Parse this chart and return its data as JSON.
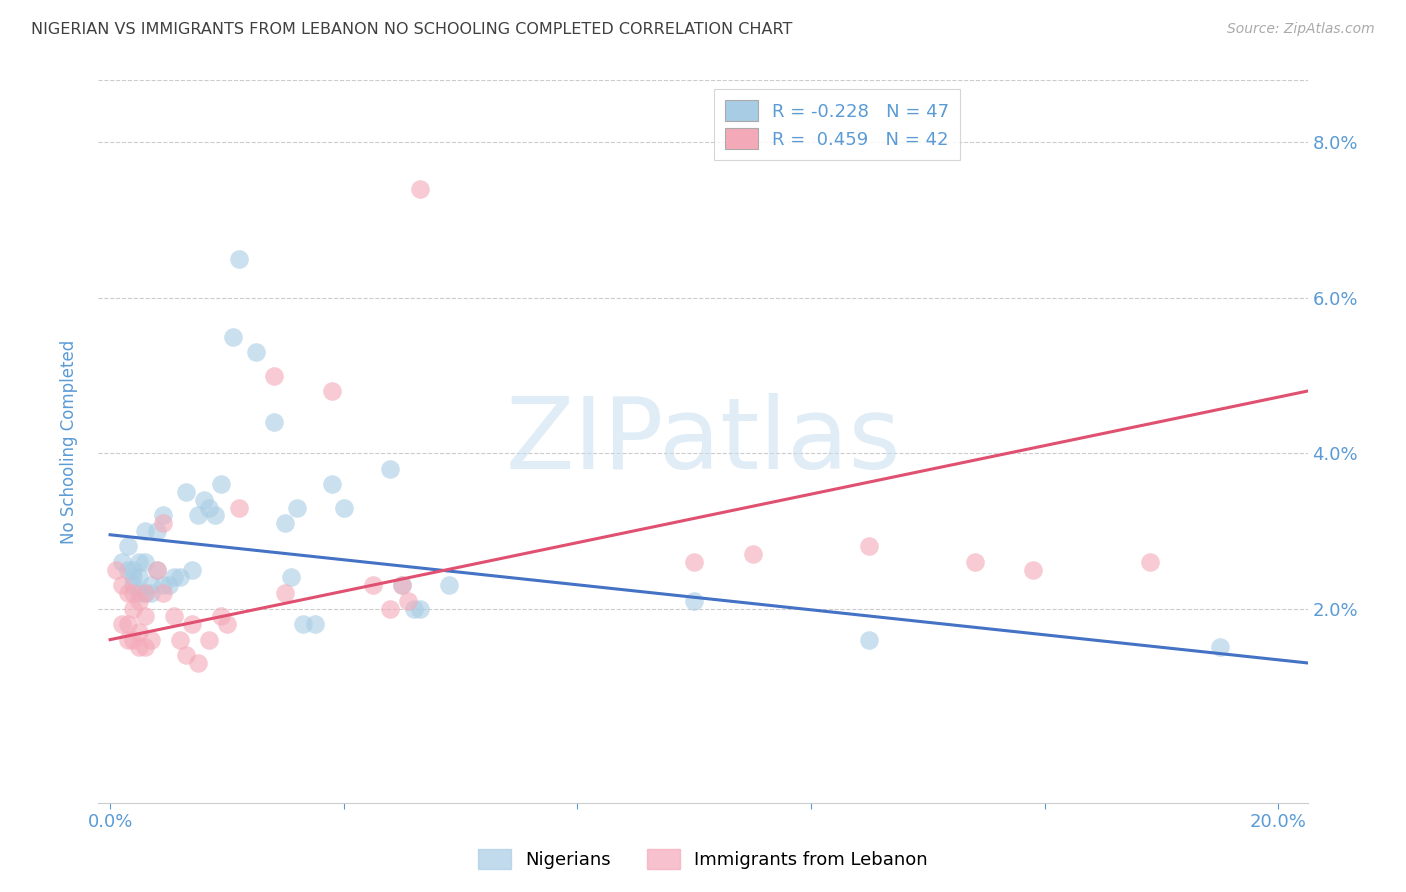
{
  "title": "NIGERIAN VS IMMIGRANTS FROM LEBANON NO SCHOOLING COMPLETED CORRELATION CHART",
  "source": "Source: ZipAtlas.com",
  "ylabel": "No Schooling Completed",
  "watermark": "ZIPatlas",
  "xlim": [
    -0.002,
    0.205
  ],
  "ylim": [
    -0.005,
    0.088
  ],
  "ytick_positions": [
    0.0,
    0.02,
    0.04,
    0.06,
    0.08
  ],
  "ytick_labels": [
    "",
    "2.0%",
    "4.0%",
    "6.0%",
    "8.0%"
  ],
  "legend_blue_r": "R = -0.228",
  "legend_blue_n": "N = 47",
  "legend_pink_r": "R =  0.459",
  "legend_pink_n": "N = 42",
  "blue_color": "#a8cce4",
  "pink_color": "#f4a9b8",
  "blue_line_color": "#4472c4",
  "pink_line_color": "#e05070",
  "background_color": "#ffffff",
  "title_color": "#404040",
  "axis_label_color": "#5b9bd5",
  "blue_scatter": [
    [
      0.002,
      0.026
    ],
    [
      0.003,
      0.025
    ],
    [
      0.003,
      0.028
    ],
    [
      0.004,
      0.025
    ],
    [
      0.004,
      0.024
    ],
    [
      0.004,
      0.023
    ],
    [
      0.005,
      0.026
    ],
    [
      0.005,
      0.024
    ],
    [
      0.005,
      0.022
    ],
    [
      0.006,
      0.026
    ],
    [
      0.006,
      0.022
    ],
    [
      0.006,
      0.03
    ],
    [
      0.007,
      0.023
    ],
    [
      0.007,
      0.022
    ],
    [
      0.008,
      0.025
    ],
    [
      0.008,
      0.03
    ],
    [
      0.009,
      0.023
    ],
    [
      0.009,
      0.032
    ],
    [
      0.01,
      0.023
    ],
    [
      0.011,
      0.024
    ],
    [
      0.012,
      0.024
    ],
    [
      0.013,
      0.035
    ],
    [
      0.014,
      0.025
    ],
    [
      0.015,
      0.032
    ],
    [
      0.016,
      0.034
    ],
    [
      0.017,
      0.033
    ],
    [
      0.018,
      0.032
    ],
    [
      0.019,
      0.036
    ],
    [
      0.021,
      0.055
    ],
    [
      0.022,
      0.065
    ],
    [
      0.025,
      0.053
    ],
    [
      0.028,
      0.044
    ],
    [
      0.03,
      0.031
    ],
    [
      0.031,
      0.024
    ],
    [
      0.032,
      0.033
    ],
    [
      0.033,
      0.018
    ],
    [
      0.035,
      0.018
    ],
    [
      0.038,
      0.036
    ],
    [
      0.04,
      0.033
    ],
    [
      0.048,
      0.038
    ],
    [
      0.05,
      0.023
    ],
    [
      0.052,
      0.02
    ],
    [
      0.053,
      0.02
    ],
    [
      0.058,
      0.023
    ],
    [
      0.1,
      0.021
    ],
    [
      0.13,
      0.016
    ],
    [
      0.19,
      0.015
    ]
  ],
  "pink_scatter": [
    [
      0.001,
      0.025
    ],
    [
      0.002,
      0.023
    ],
    [
      0.002,
      0.018
    ],
    [
      0.003,
      0.022
    ],
    [
      0.003,
      0.018
    ],
    [
      0.003,
      0.016
    ],
    [
      0.004,
      0.022
    ],
    [
      0.004,
      0.02
    ],
    [
      0.004,
      0.016
    ],
    [
      0.005,
      0.021
    ],
    [
      0.005,
      0.017
    ],
    [
      0.005,
      0.015
    ],
    [
      0.006,
      0.022
    ],
    [
      0.006,
      0.019
    ],
    [
      0.006,
      0.015
    ],
    [
      0.007,
      0.016
    ],
    [
      0.008,
      0.025
    ],
    [
      0.009,
      0.022
    ],
    [
      0.009,
      0.031
    ],
    [
      0.011,
      0.019
    ],
    [
      0.012,
      0.016
    ],
    [
      0.013,
      0.014
    ],
    [
      0.014,
      0.018
    ],
    [
      0.015,
      0.013
    ],
    [
      0.017,
      0.016
    ],
    [
      0.019,
      0.019
    ],
    [
      0.02,
      0.018
    ],
    [
      0.022,
      0.033
    ],
    [
      0.028,
      0.05
    ],
    [
      0.03,
      0.022
    ],
    [
      0.038,
      0.048
    ],
    [
      0.045,
      0.023
    ],
    [
      0.048,
      0.02
    ],
    [
      0.05,
      0.023
    ],
    [
      0.051,
      0.021
    ],
    [
      0.053,
      0.074
    ],
    [
      0.1,
      0.026
    ],
    [
      0.11,
      0.027
    ],
    [
      0.13,
      0.028
    ],
    [
      0.148,
      0.026
    ],
    [
      0.158,
      0.025
    ],
    [
      0.178,
      0.026
    ]
  ],
  "blue_trendline": [
    [
      0.0,
      0.0295
    ],
    [
      0.205,
      0.013
    ]
  ],
  "pink_trendline": [
    [
      0.0,
      0.016
    ],
    [
      0.205,
      0.048
    ]
  ]
}
